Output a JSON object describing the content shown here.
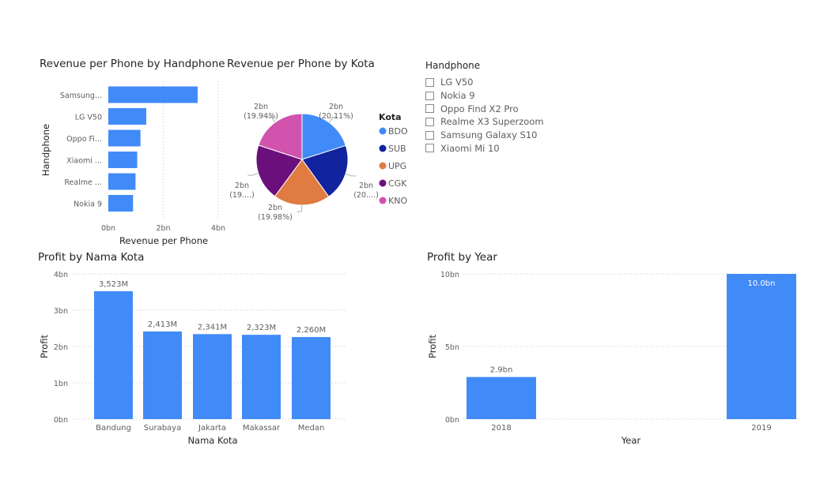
{
  "titles": {
    "revenue_handphone": "Revenue per Phone by Handphone",
    "revenue_kota": "Revenue per Phone by Kota",
    "profit_kota": "Profit by Nama Kota",
    "profit_year": "Profit by Year"
  },
  "slicer": {
    "title": "Handphone",
    "items": [
      "LG V50",
      "Nokia 9",
      "Oppo Find X2 Pro",
      "Realme X3 Superzoom",
      "Samsung Galaxy S10",
      "Xiaomi Mi 10"
    ]
  },
  "colors": {
    "bar": "#418BF8",
    "pie": [
      "#418BF8",
      "#12239E",
      "#E07B42",
      "#6B0F7C",
      "#D153AE"
    ]
  },
  "chart_data": [
    {
      "type": "bar",
      "orientation": "horizontal",
      "title": "Revenue per Phone by Handphone",
      "xlabel": "Revenue per Phone",
      "ylabel": "Handphone",
      "categories": [
        "Samsung...",
        "LG V50",
        "Oppo Fi...",
        "Xiaomi ...",
        "Realme ...",
        "Nokia 9"
      ],
      "values": [
        3.25,
        1.38,
        1.17,
        1.05,
        0.99,
        0.9
      ],
      "xlim": [
        0,
        4
      ],
      "xticks": [
        "0bn",
        "2bn",
        "4bn"
      ],
      "grid": true
    },
    {
      "type": "pie",
      "title": "Revenue per Phone by Kota",
      "legend_title": "Kota",
      "legend_position": "right",
      "labels": [
        "BDO",
        "SUB",
        "UPG",
        "CGK",
        "KNO"
      ],
      "values": [
        20.11,
        20.0,
        19.98,
        19.97,
        19.94
      ],
      "data_labels": [
        [
          "2bn",
          "(20.11%)"
        ],
        [
          "2bn",
          "(20....)"
        ],
        [
          "2bn",
          "(19.98%)"
        ],
        [
          "2bn",
          "(19....)"
        ],
        [
          "2bn",
          "(19.94%)"
        ]
      ]
    },
    {
      "type": "bar",
      "title": "Profit by Nama Kota",
      "xlabel": "Nama Kota",
      "ylabel": "Profit",
      "categories": [
        "Bandung",
        "Surabaya",
        "Jakarta",
        "Makassar",
        "Medan"
      ],
      "values": [
        3.523,
        2.413,
        2.341,
        2.323,
        2.26
      ],
      "data_labels": [
        "3,523M",
        "2,413M",
        "2,341M",
        "2,323M",
        "2,260M"
      ],
      "ylim": [
        0,
        4
      ],
      "yticks": [
        "0bn",
        "1bn",
        "2bn",
        "3bn",
        "4bn"
      ],
      "grid": true
    },
    {
      "type": "bar",
      "title": "Profit by Year",
      "xlabel": "Year",
      "ylabel": "Profit",
      "categories": [
        "2018",
        "2019"
      ],
      "values": [
        2.9,
        10.0
      ],
      "data_labels": [
        "2.9bn",
        "10.0bn"
      ],
      "ylim": [
        0,
        10
      ],
      "yticks": [
        "0bn",
        "5bn",
        "10bn"
      ],
      "grid": true
    }
  ]
}
